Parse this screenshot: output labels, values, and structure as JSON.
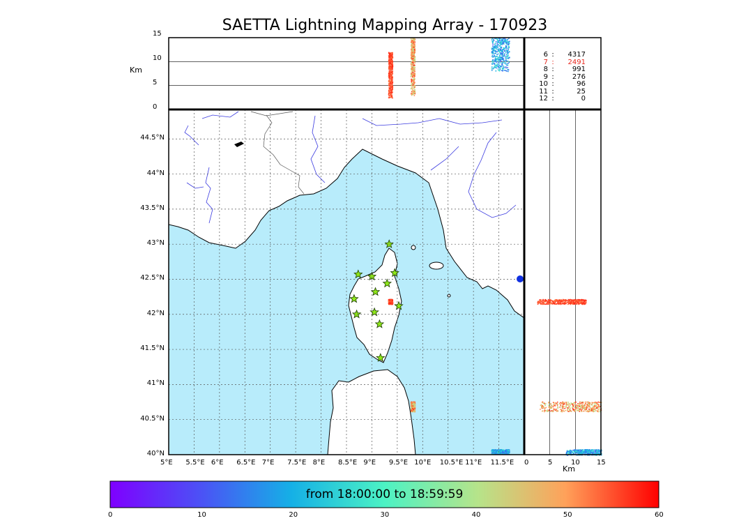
{
  "title": "SAETTA Lightning Mapping Array - 170923",
  "altitude_axis": {
    "unit_label": "Km",
    "ticks": [
      "0",
      "5",
      "10",
      "15"
    ],
    "gridlines_km": [
      5,
      10
    ]
  },
  "map": {
    "lon_ticks": [
      "5°E",
      "5.5°E",
      "6°E",
      "6.5°E",
      "7°E",
      "7.5°E",
      "8°E",
      "8.5°E",
      "9°E",
      "9.5°E",
      "10°E",
      "10.5°E",
      "11°E",
      "11.5°E"
    ],
    "lat_ticks": [
      "40°N",
      "40.5°N",
      "41°N",
      "41.5°N",
      "42°N",
      "42.5°N",
      "43°N",
      "43.5°N",
      "44°N",
      "44.5°N"
    ],
    "lon_range": [
      5,
      12
    ],
    "lat_range": [
      40,
      44.92
    ],
    "sea_color": "#b8ecfb",
    "land_color": "#ffffff",
    "river_color": "#3a3ae0",
    "grid": "dotted",
    "station_marker": "star",
    "station_color": "#8ee61a",
    "stations": [
      {
        "lon": 9.34,
        "lat": 43.0
      },
      {
        "lon": 8.73,
        "lat": 42.57
      },
      {
        "lon": 9.0,
        "lat": 42.54
      },
      {
        "lon": 9.45,
        "lat": 42.59
      },
      {
        "lon": 9.3,
        "lat": 42.44
      },
      {
        "lon": 9.07,
        "lat": 42.32
      },
      {
        "lon": 8.65,
        "lat": 42.22
      },
      {
        "lon": 9.53,
        "lat": 42.12
      },
      {
        "lon": 9.05,
        "lat": 42.03
      },
      {
        "lon": 8.7,
        "lat": 42.0
      },
      {
        "lon": 9.15,
        "lat": 41.86
      },
      {
        "lon": 9.17,
        "lat": 41.38
      }
    ]
  },
  "side_axis": {
    "unit_label": "Km",
    "ticks": [
      "0",
      "5",
      "10",
      "15"
    ],
    "gridlines_km": [
      5,
      10
    ]
  },
  "station_counts": [
    {
      "stations": "6",
      "sep": ":",
      "count": "4317",
      "highlight": false
    },
    {
      "stations": "7",
      "sep": ":",
      "count": "2491",
      "highlight": true
    },
    {
      "stations": "8",
      "sep": ":",
      "count": "991",
      "highlight": false
    },
    {
      "stations": "9",
      "sep": ":",
      "count": "276",
      "highlight": false
    },
    {
      "stations": "10",
      "sep": ":",
      "count": "96",
      "highlight": false
    },
    {
      "stations": "11",
      "sep": ":",
      "count": "25",
      "highlight": false
    },
    {
      "stations": "12",
      "sep": ":",
      "count": "0",
      "highlight": false
    }
  ],
  "highlight_color": "#e8261c",
  "colorbar": {
    "label": "from 18:00:00 to 18:59:59",
    "ticks": [
      "0",
      "10",
      "20",
      "30",
      "40",
      "50",
      "60"
    ],
    "range": [
      0,
      60
    ],
    "colormap": "rainbow"
  },
  "chart_data": {
    "type": "scatter",
    "title": "SAETTA Lightning Mapping Array - 170923",
    "description_panels": [
      "altitude-vs-longitude",
      "lat-lon-map",
      "altitude-vs-latitude"
    ],
    "color_variable_range_minutes": [
      0,
      60
    ],
    "clusters": [
      {
        "lon_range": [
          9.32,
          9.4
        ],
        "lat_range": [
          42.15,
          42.22
        ],
        "alt_km_range": [
          2.5,
          12
        ],
        "time_min": [
          52,
          58
        ]
      },
      {
        "lon_range": [
          9.76,
          9.84
        ],
        "lat_range": [
          40.62,
          40.76
        ],
        "alt_km_range": [
          3,
          15
        ],
        "time_min": [
          40,
          58
        ]
      },
      {
        "lon_range": [
          11.35,
          11.7
        ],
        "lat_range": [
          40.0,
          40.08
        ],
        "alt_km_range": [
          8,
          15
        ],
        "time_min": [
          10,
          28
        ]
      }
    ]
  }
}
